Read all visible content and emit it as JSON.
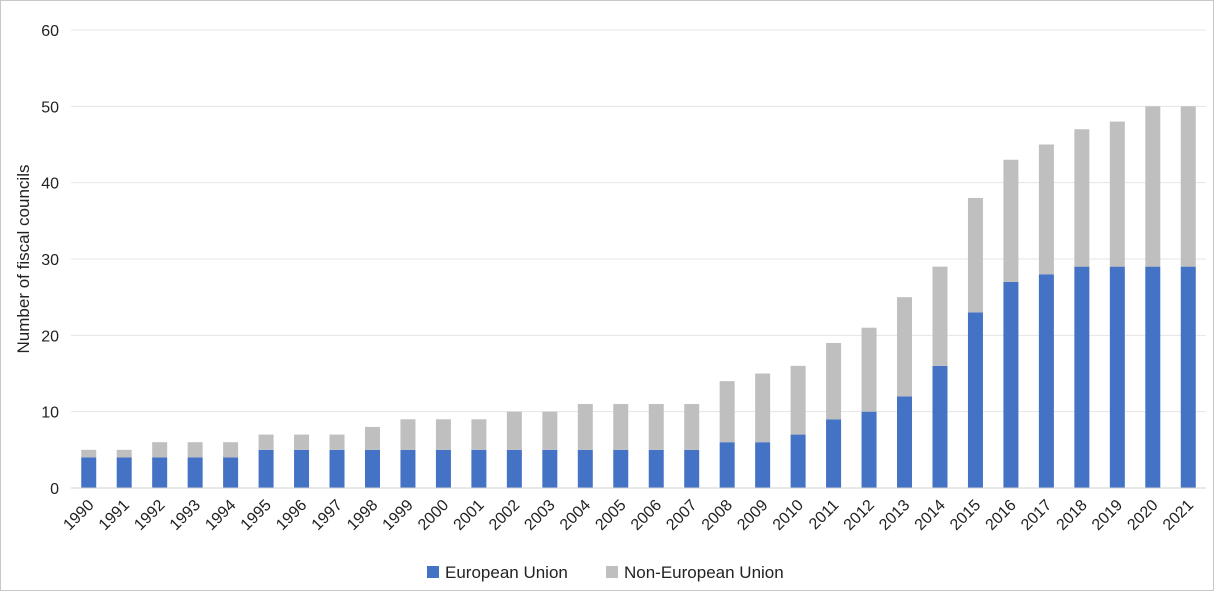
{
  "chart_data": {
    "type": "bar",
    "stacked": true,
    "title": "",
    "xlabel": "",
    "ylabel": "Number of fiscal councils",
    "ylim": [
      0,
      60
    ],
    "yticks": [
      0,
      10,
      20,
      30,
      40,
      50,
      60
    ],
    "grid": true,
    "legend_position": "bottom",
    "categories": [
      "1990",
      "1991",
      "1992",
      "1993",
      "1994",
      "1995",
      "1996",
      "1997",
      "1998",
      "1999",
      "2000",
      "2001",
      "2002",
      "2003",
      "2004",
      "2005",
      "2006",
      "2007",
      "2008",
      "2009",
      "2010",
      "2011",
      "2012",
      "2013",
      "2014",
      "2015",
      "2016",
      "2017",
      "2018",
      "2019",
      "2020",
      "2021"
    ],
    "series": [
      {
        "name": "European Union",
        "color": "#4472c4",
        "values": [
          4,
          4,
          4,
          4,
          4,
          5,
          5,
          5,
          5,
          5,
          5,
          5,
          5,
          5,
          5,
          5,
          5,
          5,
          6,
          6,
          7,
          9,
          10,
          12,
          16,
          23,
          27,
          28,
          29,
          29,
          29,
          29
        ]
      },
      {
        "name": "Non-European Union",
        "color": "#bfbfbf",
        "values": [
          1,
          1,
          2,
          2,
          2,
          2,
          2,
          2,
          3,
          4,
          4,
          4,
          5,
          5,
          6,
          6,
          6,
          6,
          8,
          9,
          9,
          10,
          11,
          13,
          13,
          15,
          16,
          17,
          18,
          19,
          21,
          21
        ]
      }
    ]
  }
}
